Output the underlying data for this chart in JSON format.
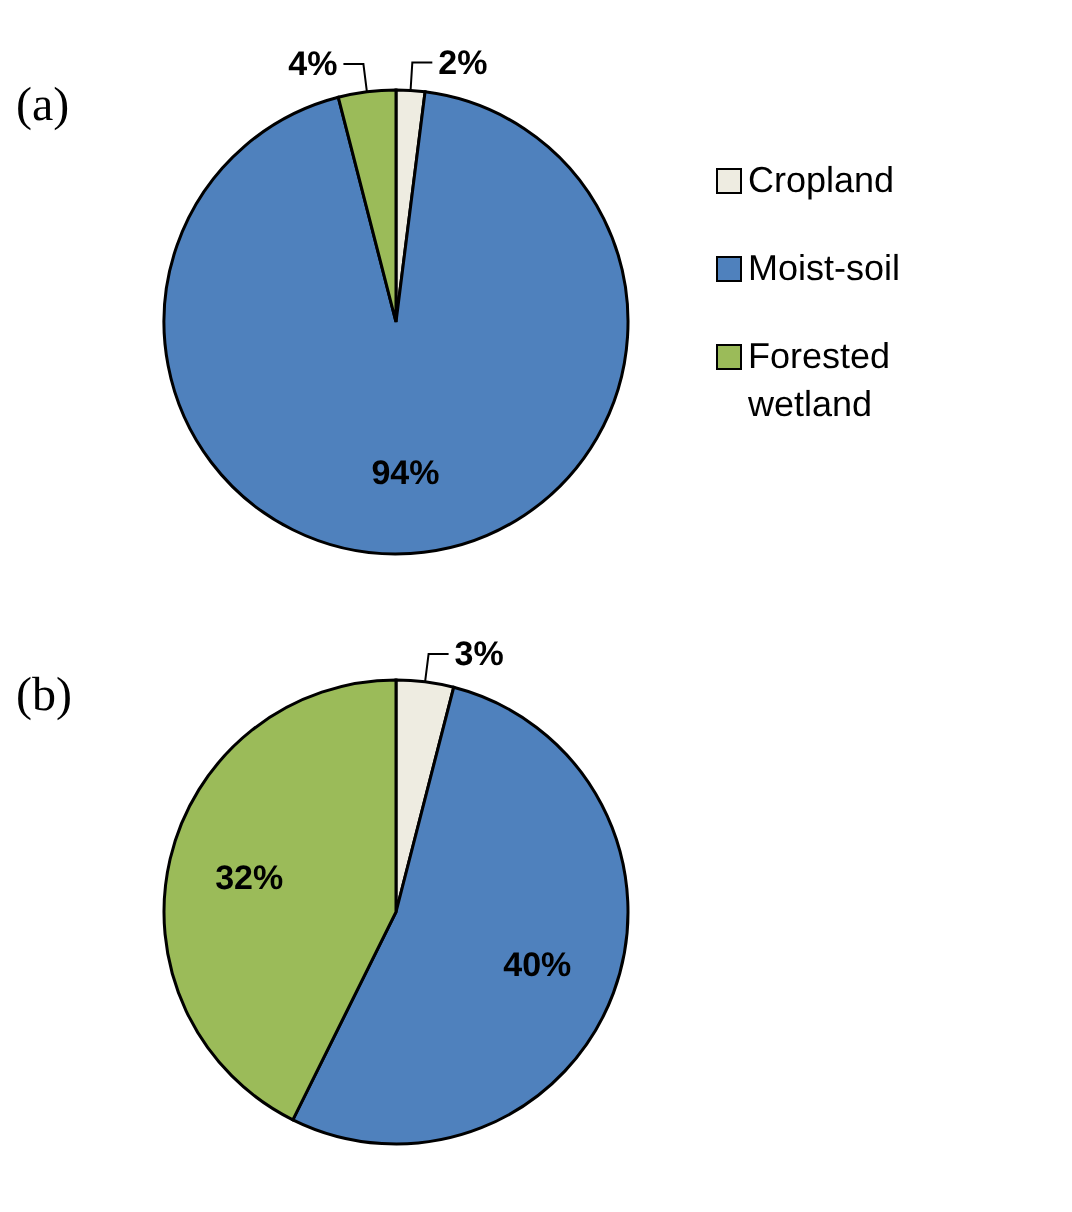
{
  "chart_data": [
    {
      "type": "pie",
      "title": "(a)",
      "categories": [
        "Cropland",
        "Moist-soil",
        "Forested wetland"
      ],
      "values": [
        2,
        94,
        4
      ],
      "colors": [
        "#eeece1",
        "#4f81bd",
        "#9bbb59"
      ],
      "value_labels": [
        "2%",
        "94%",
        "4%"
      ],
      "legend": "right"
    },
    {
      "type": "pie",
      "title": "(b)",
      "categories": [
        null,
        null,
        null
      ],
      "values": [
        3,
        40,
        32
      ],
      "colors": [
        "#eeece1",
        "#4f81bd",
        "#9bbb59"
      ],
      "value_labels": [
        "3%",
        "40%",
        "32%"
      ]
    }
  ]
}
